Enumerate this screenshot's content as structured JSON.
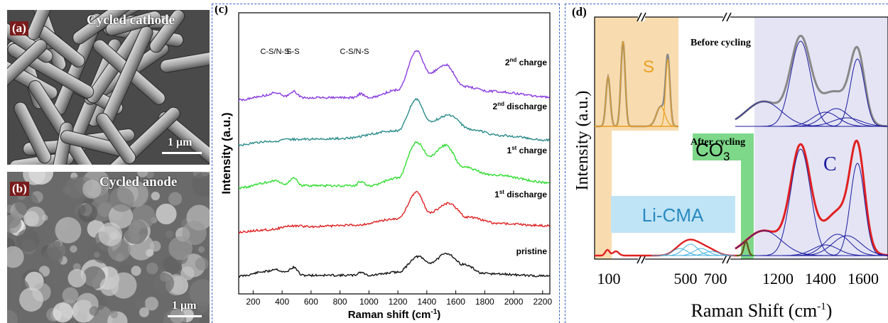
{
  "panel_a": {
    "label": "(a)",
    "title": "Cycled cathode",
    "scale": "1 μm"
  },
  "panel_b": {
    "label": "(b)",
    "title": "Cycled anode",
    "scale": "1 μm"
  },
  "chart_data": [
    {
      "panel": "(c)",
      "type": "line",
      "xlabel": "Raman shift (cm",
      "xlabel_sup": "-1",
      "xlabel_close": ")",
      "ylabel": "Intensity (a.u.)",
      "xlim": [
        100,
        2250
      ],
      "xticks": [
        200,
        400,
        600,
        800,
        1000,
        1200,
        1400,
        1600,
        1800,
        2000,
        2200
      ],
      "peak_labels": [
        {
          "text": "C-S/N-S",
          "x": 350
        },
        {
          "text": "S-S",
          "x": 475
        },
        {
          "text": "C-S/N-S",
          "x": 900
        }
      ],
      "series": [
        {
          "name_main": "pristine",
          "name_sup": "",
          "name_rest": "",
          "color": "#111111",
          "offset": 0,
          "points": [
            [
              100,
              0.05
            ],
            [
              300,
              0.35
            ],
            [
              350,
              0.5
            ],
            [
              420,
              0.3
            ],
            [
              480,
              0.6
            ],
            [
              540,
              0.1
            ],
            [
              900,
              0.1
            ],
            [
              940,
              0.3
            ],
            [
              1000,
              0.1
            ],
            [
              1200,
              0.3
            ],
            [
              1340,
              1.3
            ],
            [
              1420,
              0.9
            ],
            [
              1540,
              1.5
            ],
            [
              1650,
              0.8
            ],
            [
              1800,
              0.2
            ],
            [
              2250,
              0.05
            ]
          ]
        },
        {
          "name_main": "1",
          "name_sup": "st",
          "name_rest": " discharge",
          "color": "#e02020",
          "offset": 1,
          "points": [
            [
              100,
              0.05
            ],
            [
              300,
              0.2
            ],
            [
              480,
              0.45
            ],
            [
              600,
              0.4
            ],
            [
              900,
              0.5
            ],
            [
              1200,
              0.9
            ],
            [
              1330,
              2.6
            ],
            [
              1420,
              1.3
            ],
            [
              1550,
              1.9
            ],
            [
              1680,
              1.0
            ],
            [
              1900,
              0.6
            ],
            [
              2250,
              0.45
            ]
          ]
        },
        {
          "name_main": "1",
          "name_sup": "st",
          "name_rest": " charge",
          "color": "#33dd33",
          "offset": 2,
          "points": [
            [
              100,
              0.05
            ],
            [
              300,
              0.4
            ],
            [
              350,
              0.55
            ],
            [
              420,
              0.3
            ],
            [
              480,
              0.7
            ],
            [
              540,
              0.2
            ],
            [
              900,
              0.2
            ],
            [
              940,
              0.45
            ],
            [
              1000,
              0.2
            ],
            [
              1200,
              0.7
            ],
            [
              1330,
              3.0
            ],
            [
              1420,
              2.1
            ],
            [
              1530,
              2.8
            ],
            [
              1650,
              1.4
            ],
            [
              1850,
              0.9
            ],
            [
              2250,
              0.4
            ]
          ]
        },
        {
          "name_main": "2",
          "name_sup": "nd",
          "name_rest": " discharge",
          "color": "#2b8b8b",
          "offset": 3,
          "points": [
            [
              100,
              0.0
            ],
            [
              300,
              0.2
            ],
            [
              480,
              0.35
            ],
            [
              800,
              0.4
            ],
            [
              1200,
              0.9
            ],
            [
              1330,
              2.9
            ],
            [
              1420,
              1.5
            ],
            [
              1550,
              1.9
            ],
            [
              1700,
              1.0
            ],
            [
              1900,
              0.6
            ],
            [
              2250,
              0.3
            ]
          ]
        },
        {
          "name_main": "2",
          "name_sup": "nd",
          "name_rest": " charge",
          "color": "#8a3ce0",
          "offset": 4,
          "points": [
            [
              100,
              0.05
            ],
            [
              300,
              0.35
            ],
            [
              350,
              0.55
            ],
            [
              420,
              0.3
            ],
            [
              480,
              0.6
            ],
            [
              540,
              0.2
            ],
            [
              900,
              0.2
            ],
            [
              940,
              0.45
            ],
            [
              1000,
              0.2
            ],
            [
              1200,
              0.7
            ],
            [
              1330,
              3.2
            ],
            [
              1420,
              1.8
            ],
            [
              1530,
              2.3
            ],
            [
              1660,
              0.9
            ],
            [
              1850,
              0.6
            ],
            [
              2250,
              0.25
            ]
          ]
        }
      ]
    },
    {
      "panel": "(d)",
      "type": "line",
      "xlabel": "Raman Shift (cm",
      "xlabel_sup": "-1",
      "xlabel_close": ")",
      "ylabel": "Intensity (a.u.)",
      "xtick_labels": [
        "100",
        "500",
        "700",
        "1200",
        "1400",
        "1600"
      ],
      "annotations": {
        "before": "Before cycling",
        "after": "After cycling",
        "S": "S",
        "C": "C",
        "CO3_main": "CO",
        "CO3_sub": "3",
        "LiCMA": "Li-CMA"
      },
      "colors": {
        "before": "#888888",
        "after": "#e02020",
        "fit": "#1a1aa0",
        "S_fit": "#e8a020",
        "S_band": "#f8dcb0",
        "C_band": "#e4e4f4",
        "CO3_band": "#7ed88a",
        "LiCMA_box": "#bfe4f6",
        "LiCMA_fit": "#40b0e0"
      }
    }
  ]
}
